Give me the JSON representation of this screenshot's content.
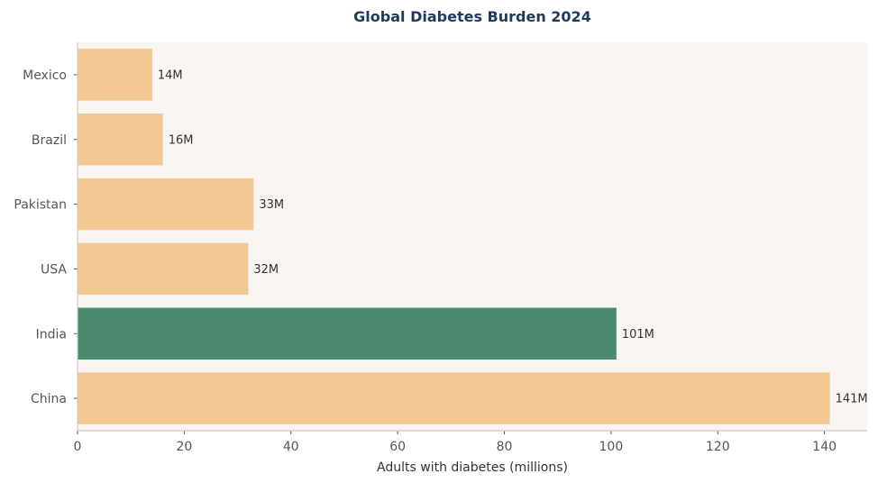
{
  "chart_data": {
    "type": "bar",
    "orientation": "horizontal",
    "title": "Global Diabetes Burden 2024",
    "xlabel": "Adults with diabetes (millions)",
    "ylabel": "",
    "categories": [
      "Mexico",
      "Brazil",
      "Pakistan",
      "USA",
      "India",
      "China"
    ],
    "values": [
      14,
      16,
      33,
      32,
      101,
      141
    ],
    "data_labels": [
      "14M",
      "16M",
      "33M",
      "32M",
      "101M",
      "141M"
    ],
    "highlight_category": "India",
    "xlim": [
      0,
      148
    ],
    "xticks": [
      0,
      20,
      40,
      60,
      80,
      100,
      120,
      140
    ],
    "grid": false,
    "legend": "none",
    "colors": {
      "bar": "#f3c892",
      "highlight": "#4a8a6f",
      "plot_background": "#f9f5f1",
      "axis": "#cccccc",
      "title": "#1f3a5f"
    }
  }
}
